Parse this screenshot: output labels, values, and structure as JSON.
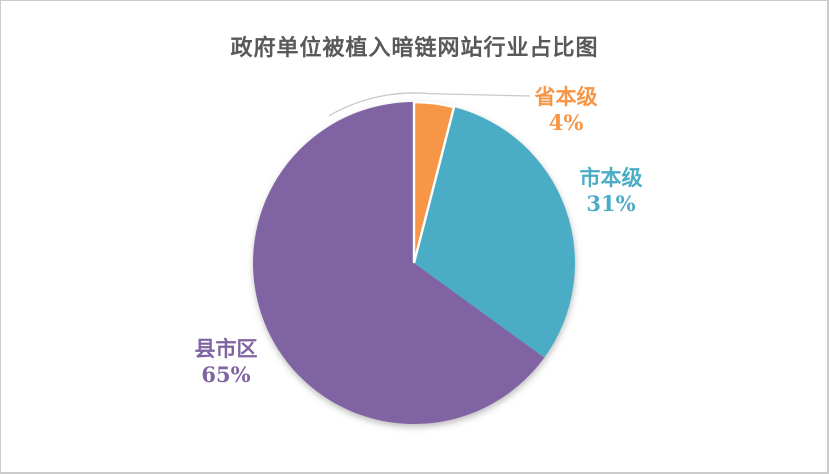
{
  "chart_data": {
    "type": "pie",
    "title": "政府单位被植入暗链网站行业占比图",
    "categories": [
      "省本级",
      "市本级",
      "县市区"
    ],
    "values": [
      4,
      31,
      65
    ],
    "value_labels": [
      "4%",
      "31%",
      "65%"
    ],
    "colors": [
      "#F79646",
      "#4BACC6",
      "#8064A2"
    ],
    "start_angle_deg": 0,
    "direction": "clockwise",
    "legend_position": "none",
    "labels_position": "outside-end",
    "leader_line": true
  },
  "frame": {
    "background": "#ffffff",
    "border_color": "#cbcbcb",
    "title_color": "#595959",
    "leader_color": "#c9c9c9"
  }
}
